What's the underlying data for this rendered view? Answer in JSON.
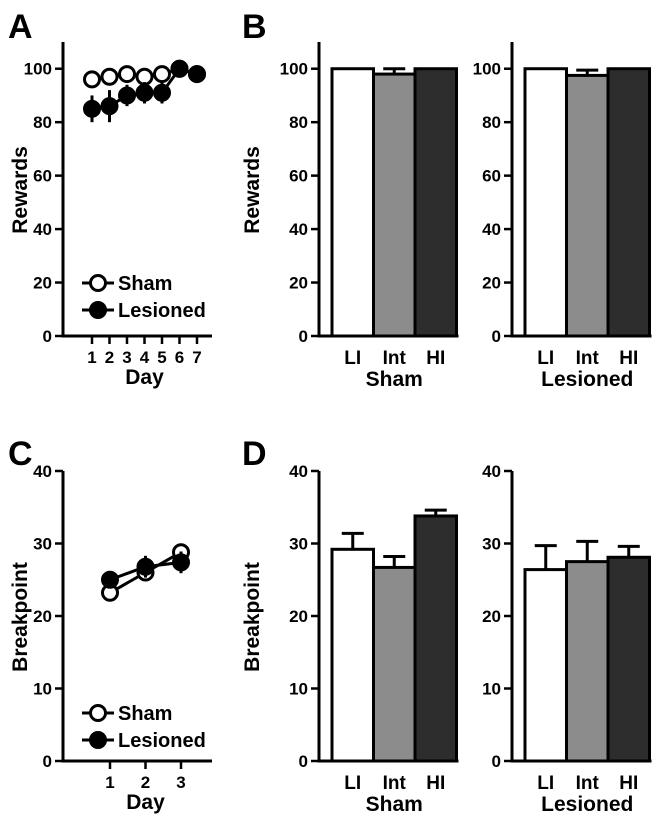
{
  "figure": {
    "panels": [
      "A",
      "B",
      "C",
      "D"
    ]
  },
  "colors": {
    "LI": "#ffffff",
    "Int": "#8c8c8c",
    "HI": "#2d2d2d",
    "axis": "#000000"
  },
  "chart_data": [
    {
      "panel": "A",
      "type": "line",
      "xlabel": "Day",
      "ylabel": "Rewards",
      "x": [
        1,
        2,
        3,
        4,
        5,
        6,
        7
      ],
      "ylim": [
        0,
        110
      ],
      "yticks": [
        0,
        20,
        40,
        60,
        80,
        100
      ],
      "legend_position": "bottom-left",
      "series": [
        {
          "name": "Sham",
          "marker": "open-circle",
          "values": [
            96,
            97,
            98,
            97,
            98,
            100,
            98
          ],
          "errors": [
            1,
            1,
            1,
            1,
            1,
            0,
            0
          ]
        },
        {
          "name": "Lesioned",
          "marker": "filled-circle",
          "values": [
            85,
            86,
            90,
            91,
            91,
            100,
            98
          ],
          "errors": [
            5,
            6,
            4,
            4,
            4,
            0,
            0
          ]
        }
      ]
    },
    {
      "panel": "B",
      "type": "bar",
      "ylabel": "Rewards",
      "ylim": [
        0,
        110
      ],
      "yticks": [
        0,
        20,
        40,
        60,
        80,
        100
      ],
      "groups": [
        {
          "name": "Sham",
          "categories": [
            "LI",
            "Int",
            "HI"
          ],
          "values": [
            100,
            98,
            100
          ],
          "errors": [
            0,
            2,
            0
          ]
        },
        {
          "name": "Lesioned",
          "categories": [
            "LI",
            "Int",
            "HI"
          ],
          "values": [
            100,
            97.5,
            100
          ],
          "errors": [
            0,
            2,
            0
          ]
        }
      ]
    },
    {
      "panel": "C",
      "type": "line",
      "xlabel": "Day",
      "ylabel": "Breakpoint",
      "x": [
        1,
        2,
        3
      ],
      "ylim": [
        0,
        40
      ],
      "yticks": [
        0,
        10,
        20,
        30,
        40
      ],
      "legend_position": "bottom-left",
      "series": [
        {
          "name": "Sham",
          "marker": "open-circle",
          "values": [
            23.2,
            26,
            28.8
          ],
          "errors": [
            1,
            1,
            1
          ]
        },
        {
          "name": "Lesioned",
          "marker": "filled-circle",
          "values": [
            25,
            26.8,
            27.4
          ],
          "errors": [
            1.2,
            1.5,
            1.5
          ]
        }
      ]
    },
    {
      "panel": "D",
      "type": "bar",
      "ylabel": "Breakpoint",
      "ylim": [
        0,
        40
      ],
      "yticks": [
        0,
        10,
        20,
        30,
        40
      ],
      "groups": [
        {
          "name": "Sham",
          "categories": [
            "LI",
            "Int",
            "HI"
          ],
          "values": [
            29.2,
            26.7,
            33.8
          ],
          "errors": [
            2.2,
            1.5,
            0.8
          ]
        },
        {
          "name": "Lesioned",
          "categories": [
            "LI",
            "Int",
            "HI"
          ],
          "values": [
            26.4,
            27.5,
            28.1
          ],
          "errors": [
            3.3,
            2.8,
            1.5
          ]
        }
      ]
    }
  ]
}
